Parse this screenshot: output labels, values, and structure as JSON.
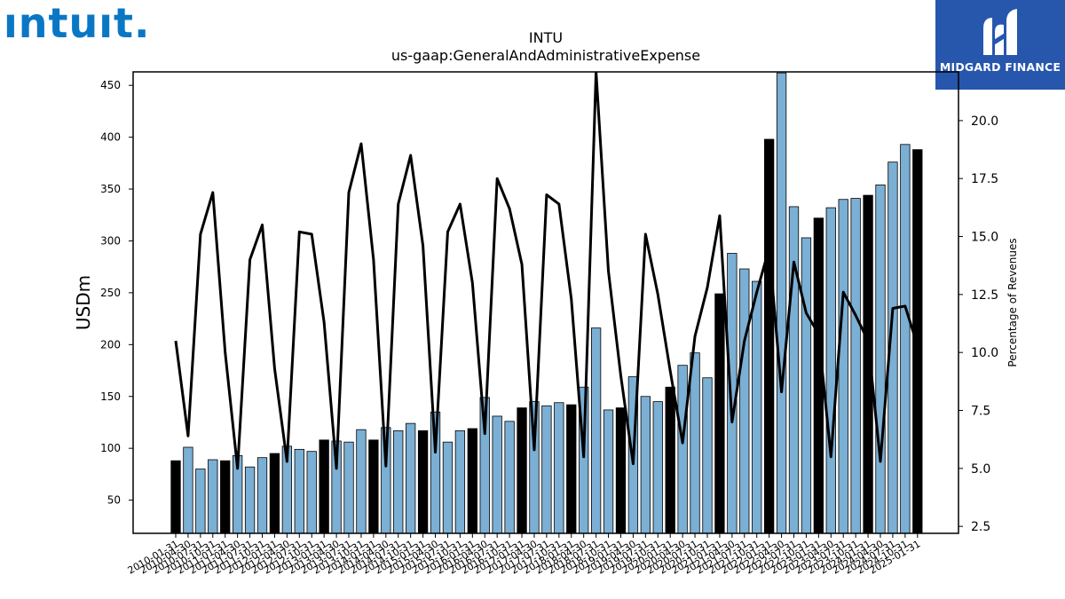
{
  "logos": {
    "left_text": "ıntuıt.",
    "right_text": "MIDGARD FINANCE"
  },
  "colors": {
    "bar_annual": "#000000",
    "bar_quarter": "#7bafd4",
    "line": "#000000",
    "logo_left": "#0a77c5",
    "logo_right_bg": "#2756ad"
  },
  "chart_data": {
    "type": "bar",
    "title": "INTU",
    "subtitle": "us-gaap:GeneralAndAdministrativeExpense",
    "ylabel": "USDm",
    "y2label": "Percentage of Revenues",
    "ylim": [
      18,
      463
    ],
    "y2lim": [
      2.2,
      22.1
    ],
    "yticks": [
      50,
      100,
      150,
      200,
      250,
      300,
      350,
      400,
      450
    ],
    "y2ticks": [
      "2.5",
      "5.0",
      "7.5",
      "10.0",
      "12.5",
      "15.0",
      "17.5",
      "20.0"
    ],
    "categories": [
      "2010-01-31",
      "2010-04-30",
      "2010-07-31",
      "2010-10-31",
      "2011-01-31",
      "2011-04-30",
      "2011-07-31",
      "2011-10-31",
      "2012-01-31",
      "2012-04-30",
      "2012-07-31",
      "2012-10-31",
      "2013-01-31",
      "2013-04-30",
      "2013-07-31",
      "2013-10-31",
      "2014-01-31",
      "2014-04-30",
      "2014-07-31",
      "2014-10-31",
      "2015-01-31",
      "2015-04-30",
      "2015-07-31",
      "2015-10-31",
      "2016-01-31",
      "2016-04-30",
      "2016-07-31",
      "2016-10-31",
      "2017-01-31",
      "2017-04-30",
      "2017-07-31",
      "2017-10-31",
      "2018-01-31",
      "2018-04-30",
      "2018-07-31",
      "2018-10-31",
      "2019-01-31",
      "2019-04-30",
      "2019-07-31",
      "2019-10-31",
      "2020-01-31",
      "2020-04-30",
      "2020-07-31",
      "2020-10-31",
      "2021-01-31",
      "2021-04-30",
      "2021-07-31",
      "2021-10-31",
      "2022-01-31",
      "2022-04-30",
      "2022-07-31",
      "2022-10-31",
      "2023-01-31",
      "2023-04-30",
      "2023-07-31",
      "2023-10-31",
      "2024-01-31",
      "2024-04-30",
      "2024-07-31",
      "2024-10-31",
      "2025-01-31"
    ],
    "tick_labels": [
      "2010-01-31",
      "2010-04-30",
      "2010-07-31",
      "2010-10-31",
      "2011-01-31",
      "2011-04-30",
      "2011-07-31",
      "2011-10-31",
      "2012-01-31",
      "2012-04-30",
      "2012-07-31",
      "2012-10-31",
      "2013-01-31",
      "2013-04-30",
      "2013-07-31",
      "2013-10-31",
      "2014-01-31",
      "2014-04-30",
      "2014-07-31",
      "2014-10-31",
      "2015-01-31",
      "2015-04-30",
      "2015-07-31",
      "2015-10-31",
      "2016-01-31",
      "2016-04-30",
      "2016-07-31",
      "2016-10-31",
      "2017-01-31",
      "2017-04-30",
      "2017-07-31",
      "2017-10-31",
      "2018-01-31",
      "2018-04-30",
      "2018-07-31",
      "2018-10-31",
      "2019-01-31",
      "2019-04-30",
      "2019-07-31",
      "2019-10-31",
      "2020-01-31",
      "2020-04-30",
      "2020-07-31",
      "2020-10-31",
      "2021-01-31",
      "2021-04-30",
      "2021-07-31",
      "2021-10-31",
      "2022-01-31",
      "2022-04-30",
      "2022-07-31",
      "2022-10-31",
      "2023-01-31",
      "2023-04-30",
      "2023-07-31",
      "2023-10-31",
      "2024-01-31",
      "2024-04-30",
      "2024-07-31",
      "2024-10-31",
      "2025-01-31"
    ],
    "series": [
      {
        "kind": "bar",
        "values": [
          88,
          101,
          80,
          89,
          88,
          93,
          82,
          91,
          95,
          102,
          99,
          97,
          108,
          107,
          106,
          118,
          108,
          120,
          117,
          124,
          117,
          135,
          106,
          117,
          119,
          149,
          131,
          126,
          139,
          145,
          141,
          144,
          142,
          159,
          216,
          137,
          139,
          169,
          150,
          145,
          159,
          180,
          192,
          168,
          249,
          288,
          273,
          261,
          398,
          462,
          333,
          303,
          322,
          332,
          340,
          341,
          344,
          354,
          376,
          393,
          388
        ],
        "annual": [
          true,
          false,
          false,
          false,
          true,
          false,
          false,
          false,
          true,
          false,
          false,
          false,
          true,
          false,
          false,
          false,
          true,
          false,
          false,
          false,
          true,
          false,
          false,
          false,
          true,
          false,
          false,
          false,
          true,
          false,
          false,
          false,
          true,
          false,
          false,
          false,
          true,
          false,
          false,
          false,
          true,
          false,
          false,
          false,
          true,
          false,
          false,
          false,
          true,
          false,
          false,
          false,
          true,
          false,
          false,
          false,
          true,
          false,
          false,
          false,
          true
        ]
      },
      {
        "kind": "line",
        "axis": "right",
        "values": [
          10.5,
          6.4,
          15.1,
          16.9,
          10.0,
          5.0,
          14.0,
          15.5,
          9.3,
          5.3,
          15.2,
          15.1,
          11.3,
          5.0,
          16.9,
          19.0,
          14.0,
          5.1,
          16.4,
          18.5,
          14.6,
          5.7,
          15.2,
          16.4,
          13.0,
          6.5,
          17.5,
          16.2,
          13.8,
          5.8,
          16.8,
          16.4,
          12.3,
          5.5,
          22.1,
          13.5,
          9.0,
          5.2,
          15.1,
          12.5,
          9.2,
          6.1,
          10.7,
          12.8,
          15.9,
          7.0,
          10.5,
          12.6,
          14.5,
          8.3,
          13.9,
          11.7,
          10.8,
          5.5,
          12.6,
          11.6,
          10.5,
          5.3,
          11.9,
          12.0,
          10.3
        ]
      }
    ],
    "grid": false
  }
}
